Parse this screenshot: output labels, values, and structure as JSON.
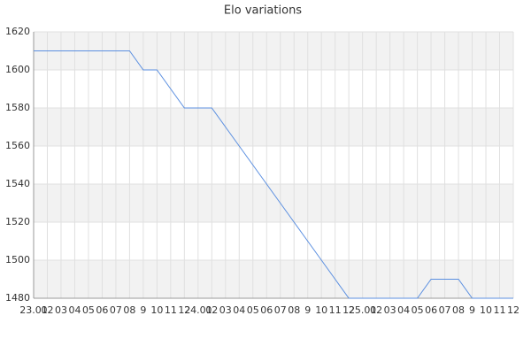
{
  "chart_data": {
    "type": "line",
    "title": "Elo variations",
    "categories": [
      "23.01",
      "02",
      "03",
      "04",
      "05",
      "06",
      "07",
      "08",
      "9",
      "10",
      "11",
      "12",
      "24.01",
      "02",
      "03",
      "04",
      "05",
      "06",
      "07",
      "08",
      "9",
      "10",
      "11",
      "12",
      "25.01",
      "02",
      "03",
      "04",
      "05",
      "06",
      "07",
      "08",
      "9",
      "10",
      "11",
      "12"
    ],
    "series": [
      {
        "name": "Elo",
        "color": "#5b8fe0",
        "values": [
          1610,
          1610,
          1610,
          1610,
          1610,
          1610,
          1610,
          1610,
          1600,
          1600,
          1590,
          1580,
          1580,
          1580,
          1570,
          1560,
          1550,
          1540,
          1530,
          1520,
          1510,
          1500,
          1490,
          1480,
          1480,
          1480,
          1480,
          1480,
          1480,
          1490,
          1490,
          1490,
          1480,
          1480,
          1480,
          1480
        ]
      }
    ],
    "ylim": [
      1480,
      1620
    ],
    "yticks": [
      1480,
      1500,
      1520,
      1540,
      1560,
      1580,
      1600,
      1620
    ],
    "grid": true,
    "band_color": "#f2f2f2"
  }
}
